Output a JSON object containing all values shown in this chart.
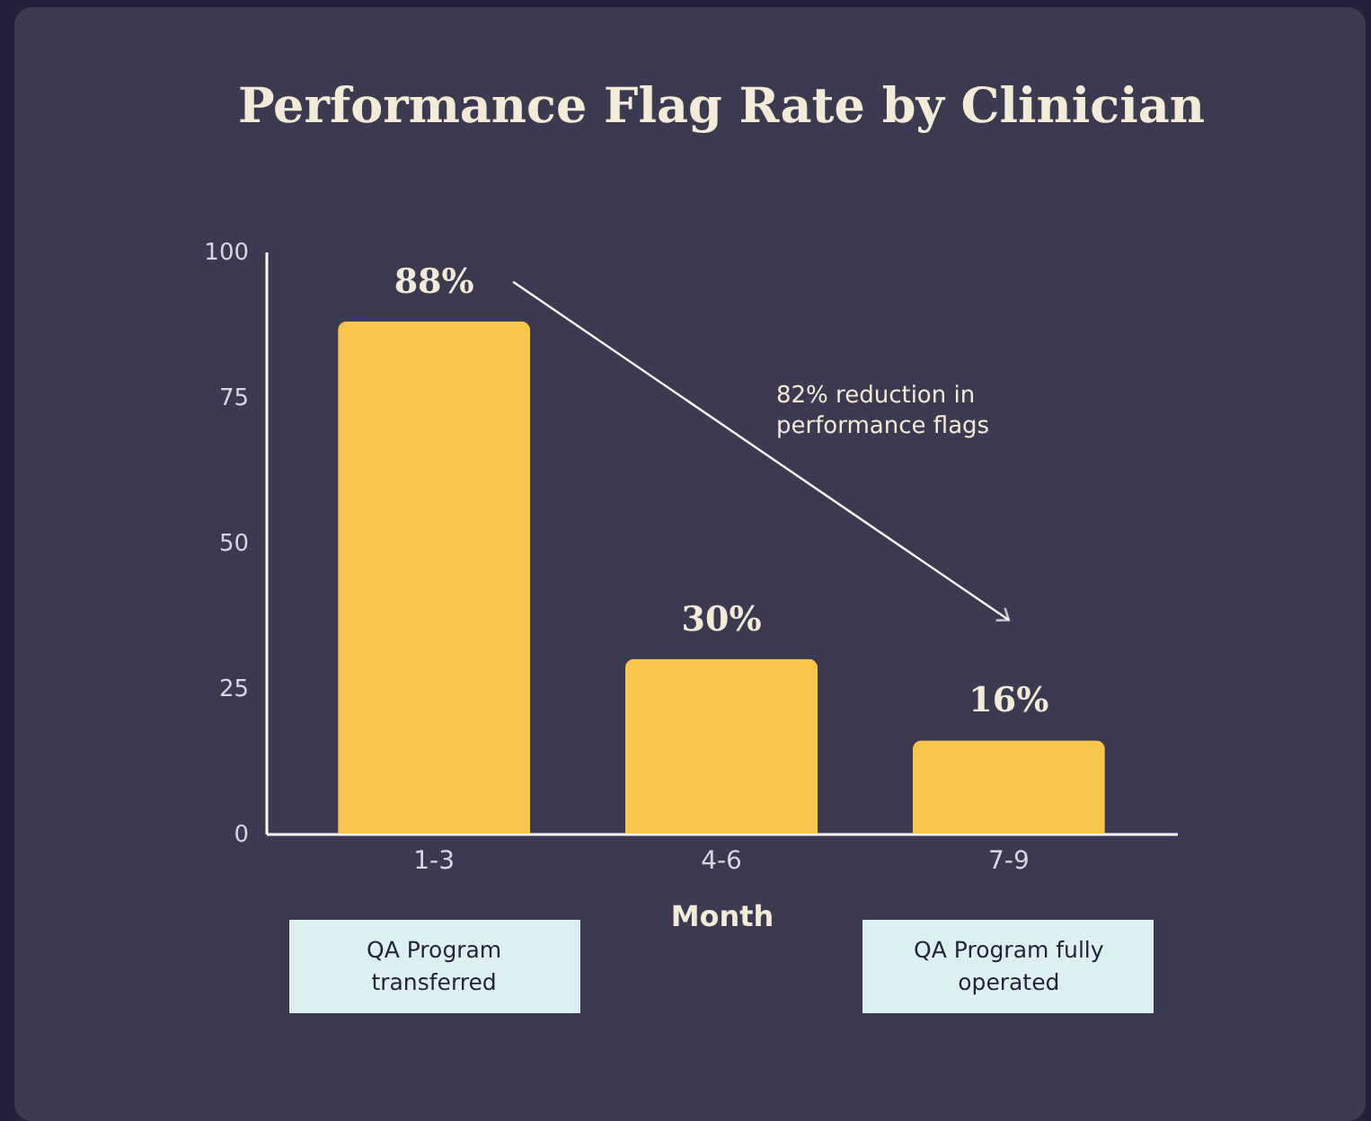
{
  "chart_data": {
    "type": "bar",
    "title": "Performance Flag Rate by Clinician",
    "xlabel": "Month",
    "categories": [
      "1-3",
      "4-6",
      "7-9"
    ],
    "values": [
      88,
      30,
      16
    ],
    "value_labels": [
      "88%",
      "30%",
      "16%"
    ],
    "color": "#f9c54a",
    "ylim": [
      0,
      100
    ],
    "yticks": [
      0,
      25,
      50,
      75,
      100
    ],
    "grid": false,
    "annotations": [
      "82% reduction in performance flags",
      "QA Program transferred",
      "QA Program fully operated"
    ]
  }
}
